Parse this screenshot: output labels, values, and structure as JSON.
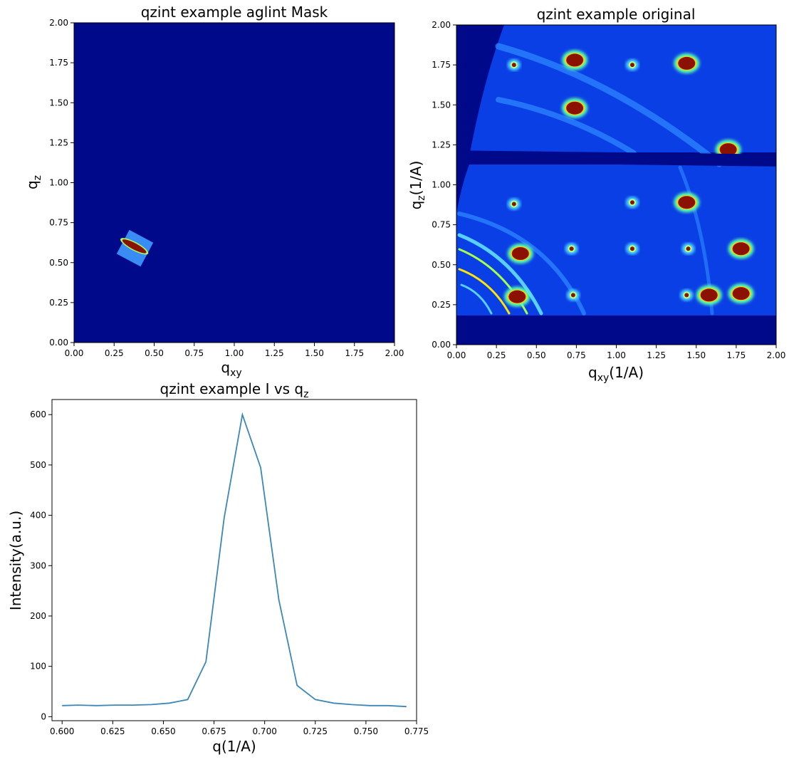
{
  "colors": {
    "map_background": "#00098a",
    "line": "#3a87b8",
    "hot_spot": "#8b1200"
  },
  "chart_data": [
    {
      "type": "heatmap",
      "title": "qzint example aglint Mask",
      "xlabel": "q",
      "xlabel_sub": "xy",
      "ylabel": "q",
      "ylabel_sub": "z",
      "xlim": [
        0,
        2
      ],
      "ylim": [
        0,
        2
      ],
      "xticks": [
        "0.00",
        "0.25",
        "0.50",
        "0.75",
        "1.00",
        "1.25",
        "1.50",
        "1.75",
        "2.00"
      ],
      "yticks": [
        "0.00",
        "0.25",
        "0.50",
        "0.75",
        "1.00",
        "1.25",
        "1.50",
        "1.75",
        "2.00"
      ],
      "colormap": "jet",
      "masked_region": {
        "q_xy_center": 0.38,
        "q_z_center": 0.59,
        "peak_q_xy": [
          0.3,
          0.45
        ],
        "peak_q_z": [
          0.53,
          0.63
        ]
      }
    },
    {
      "type": "heatmap",
      "title": "qzint example original",
      "xlabel": "q",
      "xlabel_sub": "xy",
      "xlabel_unit": "(1/A)",
      "ylabel": "q",
      "ylabel_sub": "z",
      "ylabel_unit": "(1/A)",
      "xlim": [
        0,
        2
      ],
      "ylim": [
        0,
        2
      ],
      "xticks": [
        "0.00",
        "0.25",
        "0.50",
        "0.75",
        "1.00",
        "1.25",
        "1.50",
        "1.75",
        "2.00"
      ],
      "yticks": [
        "0.00",
        "0.25",
        "0.50",
        "0.75",
        "1.00",
        "1.25",
        "1.50",
        "1.75",
        "2.00"
      ],
      "colormap": "jet",
      "gaps_q_z": [
        [
          0,
          0.18
        ],
        [
          1.12,
          1.2
        ]
      ],
      "peaks": [
        {
          "q_xy": 0.74,
          "q_z": 1.78,
          "level": "high"
        },
        {
          "q_xy": 1.44,
          "q_z": 1.76,
          "level": "high"
        },
        {
          "q_xy": 0.74,
          "q_z": 1.48,
          "level": "high"
        },
        {
          "q_xy": 0.36,
          "q_z": 1.75,
          "level": "mid"
        },
        {
          "q_xy": 1.1,
          "q_z": 1.75,
          "level": "mid"
        },
        {
          "q_xy": 1.7,
          "q_z": 1.22,
          "level": "high"
        },
        {
          "q_xy": 1.44,
          "q_z": 0.89,
          "level": "high"
        },
        {
          "q_xy": 0.36,
          "q_z": 0.88,
          "level": "mid"
        },
        {
          "q_xy": 1.1,
          "q_z": 0.89,
          "level": "mid"
        },
        {
          "q_xy": 0.72,
          "q_z": 0.6,
          "level": "mid"
        },
        {
          "q_xy": 1.1,
          "q_z": 0.6,
          "level": "mid"
        },
        {
          "q_xy": 1.45,
          "q_z": 0.6,
          "level": "mid"
        },
        {
          "q_xy": 1.78,
          "q_z": 0.6,
          "level": "high"
        },
        {
          "q_xy": 1.58,
          "q_z": 0.31,
          "level": "high"
        },
        {
          "q_xy": 1.78,
          "q_z": 0.32,
          "level": "high"
        },
        {
          "q_xy": 0.73,
          "q_z": 0.31,
          "level": "mid"
        },
        {
          "q_xy": 1.44,
          "q_z": 0.31,
          "level": "mid"
        },
        {
          "q_xy": 0.4,
          "q_z": 0.57,
          "level": "high"
        },
        {
          "q_xy": 0.38,
          "q_z": 0.3,
          "level": "high"
        }
      ]
    },
    {
      "type": "line",
      "title": "qzint example I vs q",
      "title_sub": "z",
      "xlabel": "q(1/A)",
      "ylabel": "Intensity(a.u.)",
      "xlim": [
        0.595,
        0.775
      ],
      "ylim": [
        -8,
        630
      ],
      "xticks": [
        "0.600",
        "0.625",
        "0.650",
        "0.675",
        "0.700",
        "0.725",
        "0.750",
        "0.775"
      ],
      "yticks": [
        "0",
        "100",
        "200",
        "300",
        "400",
        "500",
        "600"
      ],
      "x": [
        0.6,
        0.608,
        0.617,
        0.626,
        0.635,
        0.644,
        0.653,
        0.662,
        0.671,
        0.68,
        0.689,
        0.698,
        0.707,
        0.716,
        0.725,
        0.734,
        0.743,
        0.752,
        0.761,
        0.77
      ],
      "y": [
        22,
        23,
        22,
        23,
        23,
        24,
        27,
        34,
        109,
        395,
        600,
        495,
        232,
        62,
        34,
        27,
        24,
        22,
        22,
        20
      ]
    }
  ]
}
